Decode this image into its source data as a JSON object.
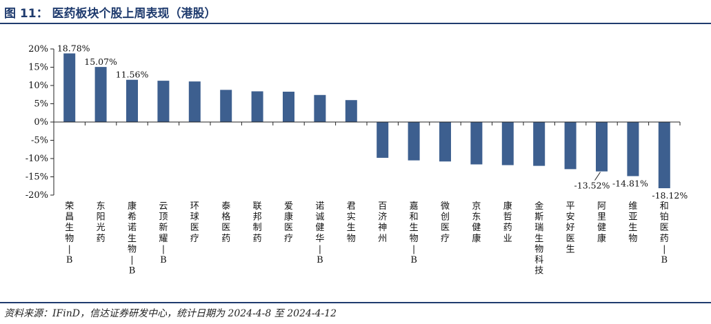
{
  "figure": {
    "title": "图 11：  医药板块个股上周表现（港股）",
    "source": "资料来源：IFinD，信达证券研发中心，统计日期为 2024-4-8 至 2024-4-12"
  },
  "colors": {
    "bar": "#3d5f8f",
    "axis": "#222222",
    "rule": "#1f3b6e"
  },
  "chart_data": {
    "type": "bar",
    "title": "",
    "xlabel": "",
    "ylabel": "",
    "ylim": [
      -20,
      20
    ],
    "yticks": [
      20,
      15,
      10,
      5,
      0,
      -5,
      -10,
      -15,
      -20
    ],
    "ytick_labels": [
      "20%",
      "15%",
      "10%",
      "5%",
      "0%",
      "-5%",
      "-10%",
      "-15%",
      "-20%"
    ],
    "grid": false,
    "categories": [
      "荣昌生物-B",
      "东阳光药",
      "康希诺生物-B",
      "云顶新耀-B",
      "环球医疗",
      "泰格医药",
      "联邦制药",
      "爱康医疗",
      "诺诚健华-B",
      "君实生物",
      "百济神州",
      "嘉和生物-B",
      "微创医疗",
      "京东健康",
      "康哲药业",
      "金斯瑞生物科技",
      "平安好医生",
      "阿里健康",
      "维亚生物",
      "和铂医药-B"
    ],
    "values": [
      18.78,
      15.07,
      11.56,
      11.3,
      11.1,
      8.8,
      8.4,
      8.3,
      7.4,
      6.0,
      -9.8,
      -10.5,
      -10.8,
      -11.6,
      -11.8,
      -12.0,
      -12.9,
      -13.52,
      -14.81,
      -18.12
    ],
    "data_labels": [
      {
        "index": 0,
        "text": "18.78%"
      },
      {
        "index": 1,
        "text": "15.07%"
      },
      {
        "index": 2,
        "text": "11.56%"
      },
      {
        "index": 17,
        "text": "-13.52%"
      },
      {
        "index": 18,
        "text": "-14.81%"
      },
      {
        "index": 19,
        "text": "-18.12%"
      }
    ]
  }
}
